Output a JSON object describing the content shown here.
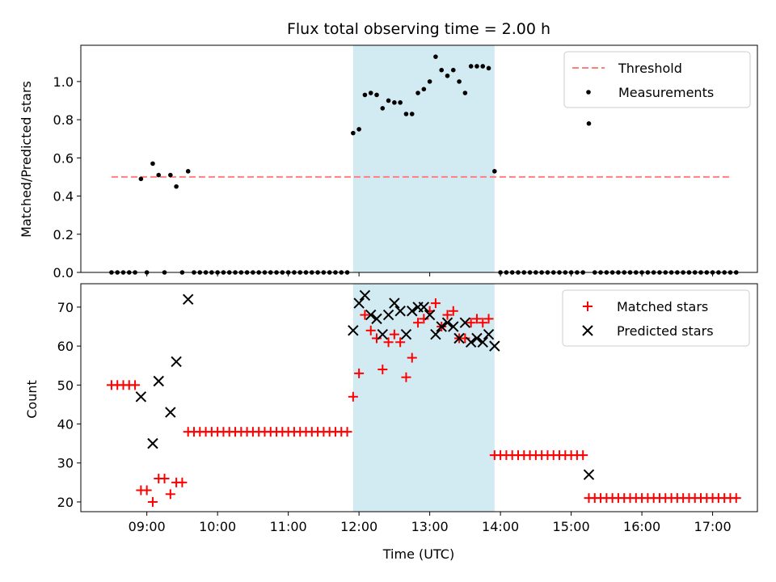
{
  "title": "Flux total observing time = 2.00 h",
  "colors": {
    "threshold": "#ff7f7f",
    "measurement": "#000000",
    "matched": "#ff0000",
    "predicted": "#000000",
    "band": "#add8e6"
  },
  "chart_data": [
    {
      "type": "scatter",
      "panel": "top",
      "xlabel": "",
      "ylabel": "Matched/Predicted stars",
      "xlim": [
        "08:04",
        "17:38"
      ],
      "ylim": [
        0,
        1.19
      ],
      "yticks": [
        0.0,
        0.2,
        0.4,
        0.6,
        0.8,
        1.0
      ],
      "ytick_labels": [
        "0.0",
        "0.2",
        "0.4",
        "0.6",
        "0.8",
        "1.0"
      ],
      "xticks": [
        "09:00",
        "10:00",
        "11:00",
        "12:00",
        "13:00",
        "14:00",
        "15:00",
        "16:00",
        "17:00"
      ],
      "shaded_span": [
        "11:55",
        "13:55"
      ],
      "legend_position": "upper right",
      "threshold": {
        "name": "Threshold",
        "y": 0.5,
        "x_range": [
          "08:30",
          "17:15"
        ]
      },
      "series": [
        {
          "name": "Measurements",
          "x": [
            "08:30",
            "08:35",
            "08:40",
            "08:45",
            "08:50",
            "08:55",
            "09:00",
            "09:05",
            "09:10",
            "09:15",
            "09:20",
            "09:25",
            "09:30",
            "09:35",
            "09:40",
            "09:45",
            "09:50",
            "09:55",
            "10:00",
            "10:05",
            "10:10",
            "10:15",
            "10:20",
            "10:25",
            "10:30",
            "10:35",
            "10:40",
            "10:45",
            "10:50",
            "10:55",
            "11:00",
            "11:05",
            "11:10",
            "11:15",
            "11:20",
            "11:25",
            "11:30",
            "11:35",
            "11:40",
            "11:45",
            "11:50",
            "11:55",
            "12:00",
            "12:05",
            "12:10",
            "12:15",
            "12:20",
            "12:25",
            "12:30",
            "12:35",
            "12:40",
            "12:45",
            "12:50",
            "12:55",
            "13:00",
            "13:05",
            "13:10",
            "13:15",
            "13:20",
            "13:25",
            "13:30",
            "13:35",
            "13:40",
            "13:45",
            "13:50",
            "13:55",
            "14:00",
            "14:05",
            "14:10",
            "14:15",
            "14:20",
            "14:25",
            "14:30",
            "14:35",
            "14:40",
            "14:45",
            "14:50",
            "14:55",
            "15:00",
            "15:05",
            "15:10",
            "15:15",
            "15:20",
            "15:25",
            "15:30",
            "15:35",
            "15:40",
            "15:45",
            "15:50",
            "15:55",
            "16:00",
            "16:05",
            "16:10",
            "16:15",
            "16:20",
            "16:25",
            "16:30",
            "16:35",
            "16:40",
            "16:45",
            "16:50",
            "16:55",
            "17:00",
            "17:05",
            "17:10",
            "17:15",
            "17:20"
          ],
          "y": [
            0,
            0,
            0,
            0,
            0,
            0.49,
            0,
            0.57,
            0.51,
            0,
            0.51,
            0.45,
            0,
            0.53,
            0,
            0,
            0,
            0,
            0,
            0,
            0,
            0,
            0,
            0,
            0,
            0,
            0,
            0,
            0,
            0,
            0,
            0,
            0,
            0,
            0,
            0,
            0,
            0,
            0,
            0,
            0,
            0.73,
            0.75,
            0.93,
            0.94,
            0.93,
            0.86,
            0.9,
            0.89,
            0.89,
            0.83,
            0.83,
            0.94,
            0.96,
            1.0,
            1.13,
            1.06,
            1.03,
            1.06,
            1.0,
            0.94,
            1.08,
            1.08,
            1.08,
            1.07,
            0.53,
            0,
            0,
            0,
            0,
            0,
            0,
            0,
            0,
            0,
            0,
            0,
            0,
            0,
            0,
            0,
            0.78,
            0,
            0,
            0,
            0,
            0,
            0,
            0,
            0,
            0,
            0,
            0,
            0,
            0,
            0,
            0,
            0,
            0,
            0,
            0,
            0,
            0,
            0,
            0,
            0,
            0
          ]
        }
      ]
    },
    {
      "type": "scatter",
      "panel": "bottom",
      "xlabel": "Time (UTC)",
      "ylabel": "Count",
      "xlim": [
        "08:04",
        "17:38"
      ],
      "ylim": [
        17.5,
        76
      ],
      "yticks": [
        20,
        30,
        40,
        50,
        60,
        70
      ],
      "ytick_labels": [
        "20",
        "30",
        "40",
        "50",
        "60",
        "70"
      ],
      "xticks": [
        "09:00",
        "10:00",
        "11:00",
        "12:00",
        "13:00",
        "14:00",
        "15:00",
        "16:00",
        "17:00"
      ],
      "xtick_labels": [
        "09:00",
        "10:00",
        "11:00",
        "12:00",
        "13:00",
        "14:00",
        "15:00",
        "16:00",
        "17:00"
      ],
      "shaded_span": [
        "11:55",
        "13:55"
      ],
      "legend_position": "upper right",
      "series": [
        {
          "name": "Matched stars",
          "marker": "+",
          "x": [
            "08:30",
            "08:35",
            "08:40",
            "08:45",
            "08:50",
            "08:55",
            "09:00",
            "09:05",
            "09:10",
            "09:15",
            "09:20",
            "09:25",
            "09:30",
            "09:35",
            "09:40",
            "09:45",
            "09:50",
            "09:55",
            "10:00",
            "10:05",
            "10:10",
            "10:15",
            "10:20",
            "10:25",
            "10:30",
            "10:35",
            "10:40",
            "10:45",
            "10:50",
            "10:55",
            "11:00",
            "11:05",
            "11:10",
            "11:15",
            "11:20",
            "11:25",
            "11:30",
            "11:35",
            "11:40",
            "11:45",
            "11:50",
            "11:55",
            "12:00",
            "12:05",
            "12:10",
            "12:15",
            "12:20",
            "12:25",
            "12:30",
            "12:35",
            "12:40",
            "12:45",
            "12:50",
            "12:55",
            "13:00",
            "13:05",
            "13:10",
            "13:15",
            "13:20",
            "13:25",
            "13:30",
            "13:35",
            "13:40",
            "13:45",
            "13:50",
            "13:55",
            "14:00",
            "14:05",
            "14:10",
            "14:15",
            "14:20",
            "14:25",
            "14:30",
            "14:35",
            "14:40",
            "14:45",
            "14:50",
            "14:55",
            "15:00",
            "15:05",
            "15:10",
            "15:15",
            "15:20",
            "15:25",
            "15:30",
            "15:35",
            "15:40",
            "15:45",
            "15:50",
            "15:55",
            "16:00",
            "16:05",
            "16:10",
            "16:15",
            "16:20",
            "16:25",
            "16:30",
            "16:35",
            "16:40",
            "16:45",
            "16:50",
            "16:55",
            "17:00",
            "17:05",
            "17:10",
            "17:15",
            "17:20"
          ],
          "y": [
            50,
            50,
            50,
            50,
            50,
            23,
            23,
            20,
            26,
            26,
            22,
            25,
            25,
            38,
            38,
            38,
            38,
            38,
            38,
            38,
            38,
            38,
            38,
            38,
            38,
            38,
            38,
            38,
            38,
            38,
            38,
            38,
            38,
            38,
            38,
            38,
            38,
            38,
            38,
            38,
            38,
            47,
            53,
            68,
            64,
            62,
            54,
            61,
            63,
            61,
            52,
            57,
            66,
            67,
            69,
            71,
            65,
            68,
            69,
            62,
            62,
            66,
            67,
            66,
            67,
            32,
            32,
            32,
            32,
            32,
            32,
            32,
            32,
            32,
            32,
            32,
            32,
            32,
            32,
            32,
            32,
            21,
            21,
            21,
            21,
            21,
            21,
            21,
            21,
            21,
            21,
            21,
            21,
            21,
            21,
            21,
            21,
            21,
            21,
            21,
            21,
            21,
            21,
            21,
            21,
            21,
            21
          ]
        },
        {
          "name": "Predicted stars",
          "marker": "x",
          "x": [
            "08:55",
            "09:05",
            "09:10",
            "09:20",
            "09:25",
            "09:35",
            "11:55",
            "12:00",
            "12:05",
            "12:10",
            "12:15",
            "12:20",
            "12:25",
            "12:30",
            "12:35",
            "12:40",
            "12:45",
            "12:50",
            "12:55",
            "13:00",
            "13:05",
            "13:10",
            "13:15",
            "13:20",
            "13:25",
            "13:30",
            "13:35",
            "13:40",
            "13:45",
            "13:50",
            "13:55",
            "15:15"
          ],
          "y": [
            47,
            35,
            51,
            43,
            56,
            72,
            64,
            71,
            73,
            68,
            67,
            63,
            68,
            71,
            69,
            63,
            69,
            70,
            70,
            68,
            63,
            65,
            66,
            65,
            62,
            66,
            61,
            62,
            61,
            63,
            60,
            27
          ]
        }
      ]
    }
  ]
}
